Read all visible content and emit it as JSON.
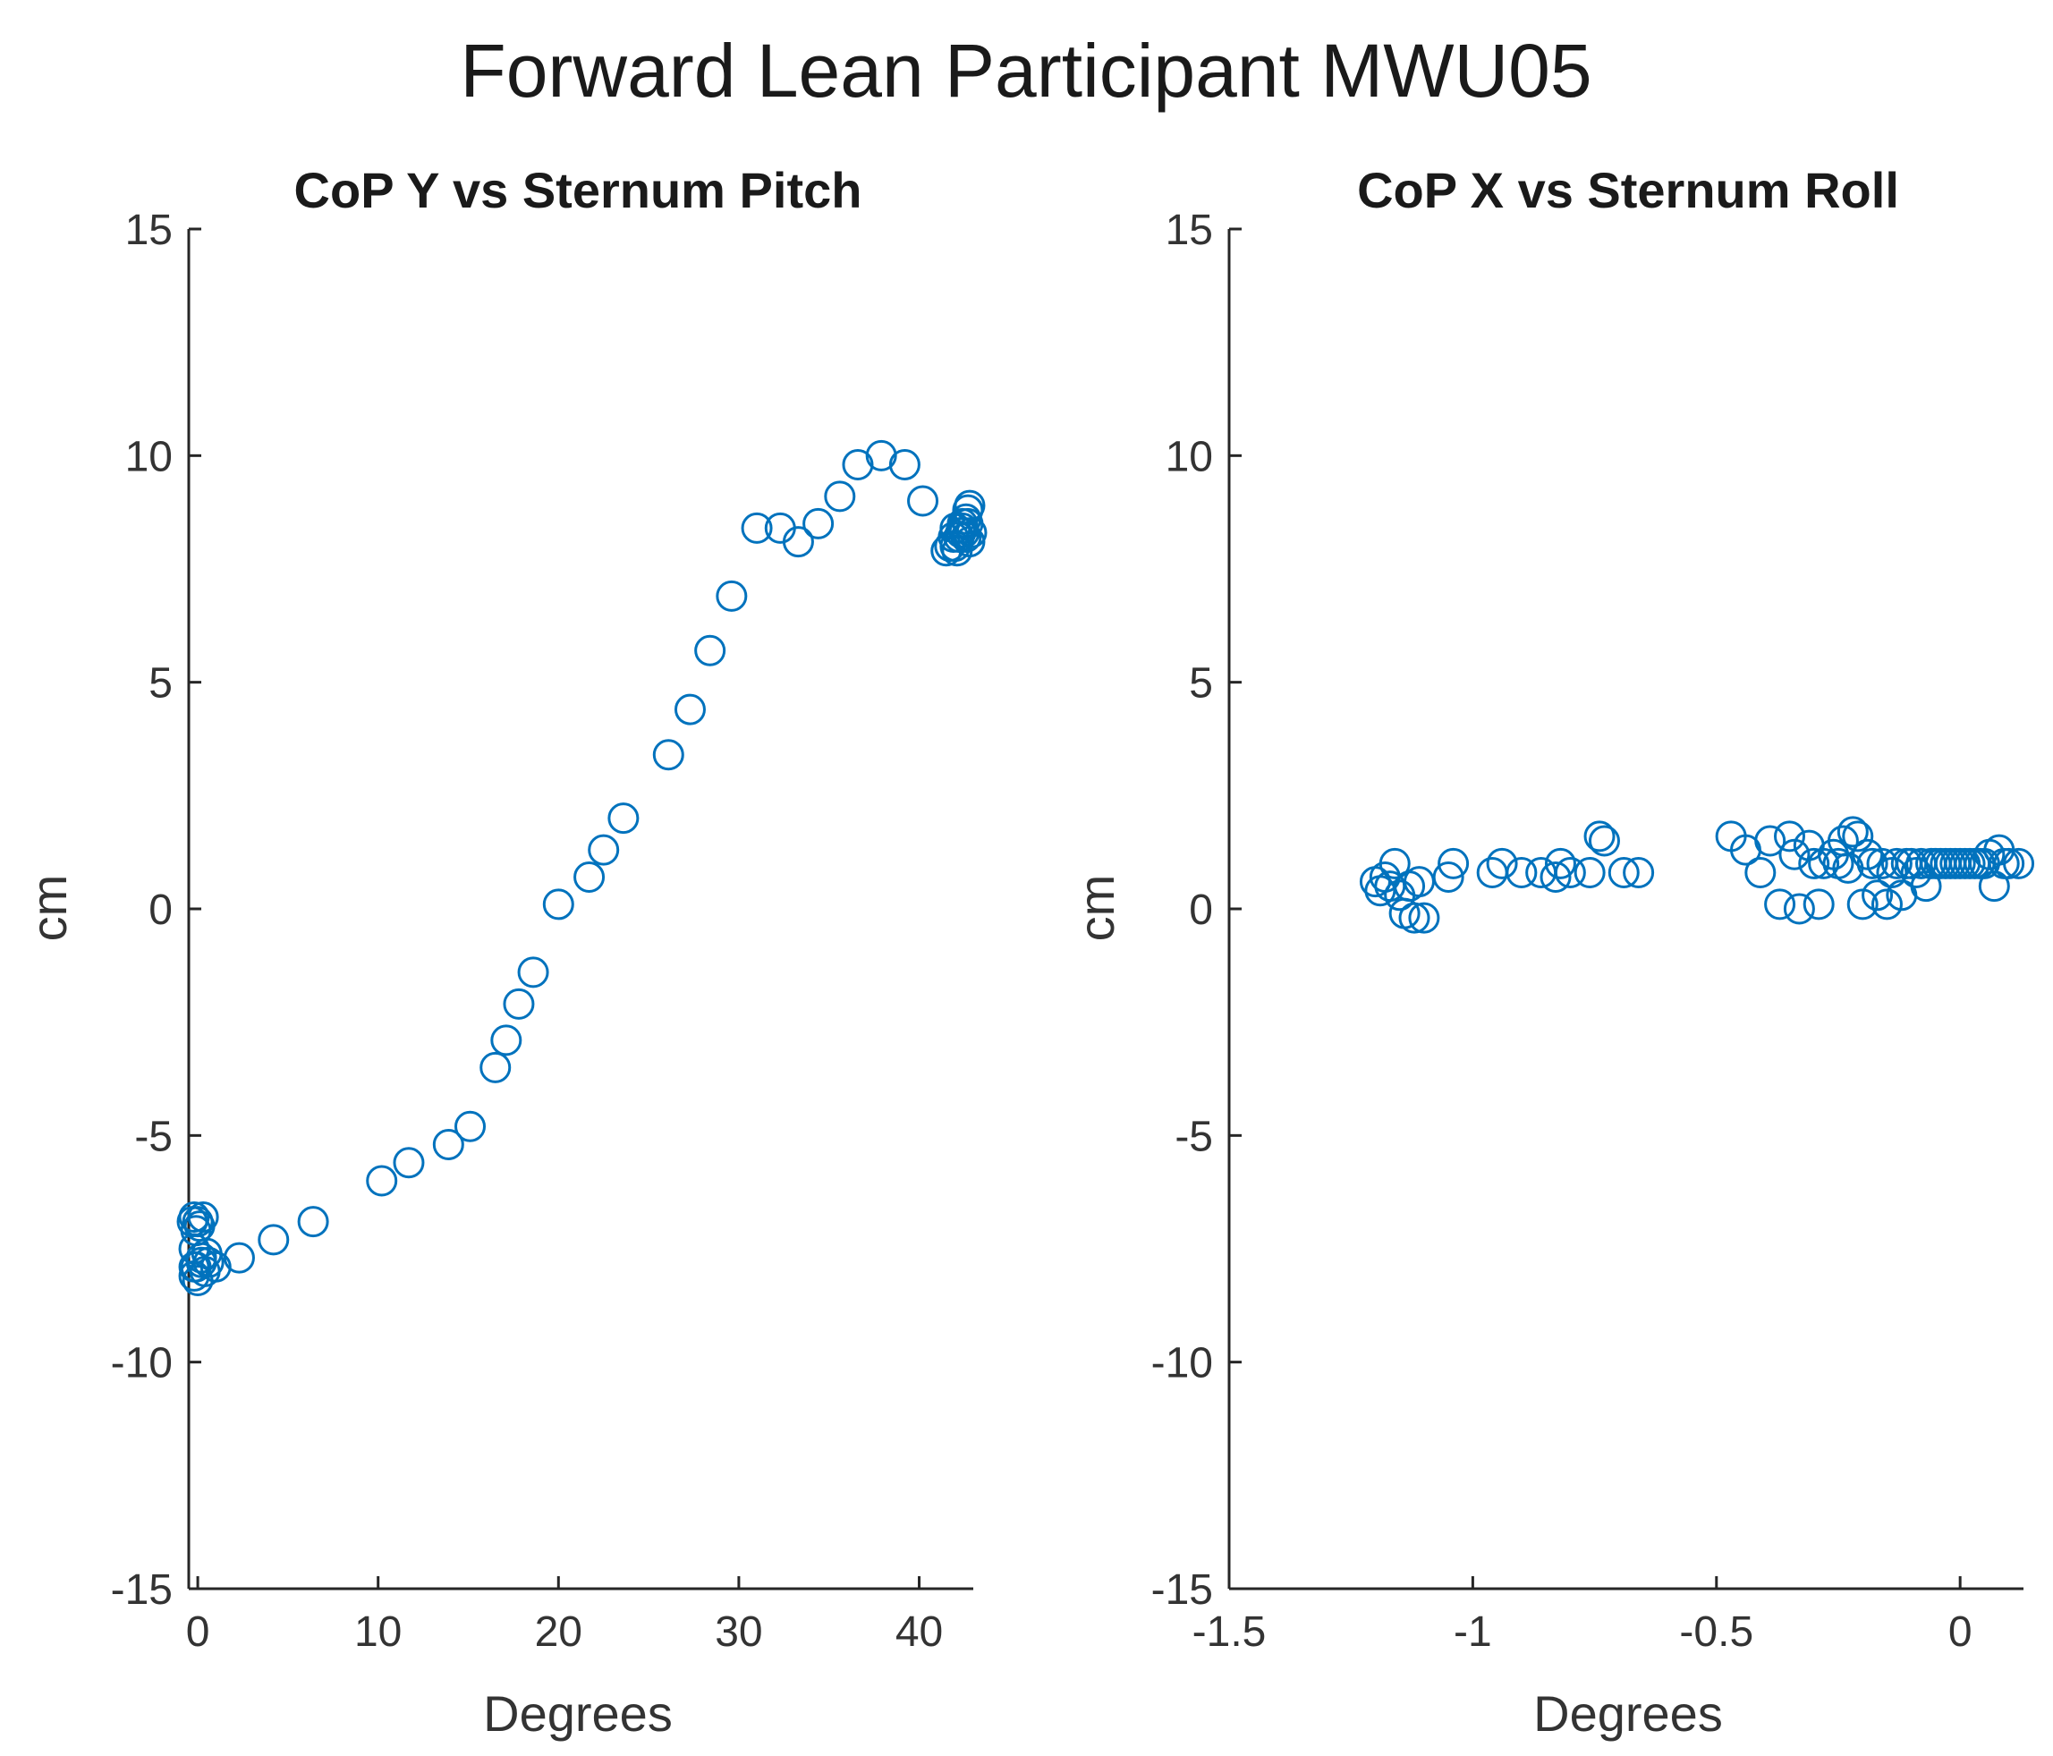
{
  "figure_title": "Forward Lean Participant MWU05",
  "colors": {
    "marker": "#0072BD",
    "axis": "#262626",
    "text": "#333333"
  },
  "chart_data": [
    {
      "type": "scatter",
      "title": "CoP Y vs Sternum Pitch",
      "xlabel": "Degrees",
      "ylabel": "cm",
      "xlim": [
        -0.5,
        43
      ],
      "ylim": [
        -15,
        15
      ],
      "xticks": [
        0,
        10,
        20,
        30,
        40
      ],
      "yticks": [
        -15,
        -10,
        -5,
        0,
        5,
        10,
        15
      ],
      "marker": "circle-open",
      "x": [
        -0.3,
        -0.2,
        0.0,
        0.1,
        -0.1,
        0.3,
        -0.2,
        0.2,
        -0.1,
        0.4,
        0.2,
        -0.2,
        0.5,
        1.0,
        0.6,
        0.0,
        -0.2,
        2.3,
        4.2,
        6.4,
        10.2,
        11.7,
        13.9,
        15.1,
        16.5,
        17.1,
        17.8,
        18.6,
        20.0,
        21.7,
        22.5,
        23.6,
        26.1,
        27.3,
        28.4,
        29.6,
        31.0,
        32.3,
        33.3,
        34.4,
        35.6,
        36.6,
        37.9,
        39.2,
        40.2,
        41.5,
        41.7,
        41.9,
        42.0,
        42.1,
        42.3,
        42.4,
        42.6,
        42.7,
        42.8,
        42.9,
        42.8,
        42.6,
        42.4,
        42.2,
        42.0,
        42.5,
        42.7
      ],
      "y": [
        -6.9,
        -6.8,
        -6.9,
        -7.0,
        -7.1,
        -6.8,
        -7.5,
        -7.7,
        -7.9,
        -8.0,
        -7.8,
        -8.1,
        -7.6,
        -7.9,
        -7.8,
        -8.2,
        -7.9,
        -7.7,
        -7.3,
        -6.9,
        -6.0,
        -5.6,
        -5.2,
        -4.8,
        -3.5,
        -2.9,
        -2.1,
        -1.4,
        0.1,
        0.7,
        1.3,
        2.0,
        3.4,
        4.4,
        5.7,
        6.9,
        8.4,
        8.4,
        8.1,
        8.5,
        9.1,
        9.8,
        10.0,
        9.8,
        9.0,
        7.9,
        8.0,
        8.2,
        8.4,
        7.9,
        8.3,
        8.5,
        8.2,
        8.8,
        8.9,
        8.3,
        8.1,
        8.6,
        8.4,
        8.2,
        8.0,
        8.3,
        8.5
      ]
    },
    {
      "type": "scatter",
      "title": "CoP X vs Sternum Roll",
      "xlabel": "Degrees",
      "ylabel": "cm",
      "xlim": [
        -1.5,
        0.13
      ],
      "ylim": [
        -15,
        15
      ],
      "xticks": [
        -1.5,
        -1,
        -0.5,
        0
      ],
      "yticks": [
        -15,
        -10,
        -5,
        0,
        5,
        10,
        15
      ],
      "marker": "circle-open",
      "x": [
        -1.2,
        -1.19,
        -1.18,
        -1.17,
        -1.16,
        -1.15,
        -1.14,
        -1.13,
        -1.12,
        -1.11,
        -1.1,
        -1.05,
        -1.04,
        -0.96,
        -0.94,
        -0.9,
        -0.86,
        -0.83,
        -0.82,
        -0.8,
        -0.76,
        -0.74,
        -0.73,
        -0.69,
        -0.66,
        -0.47,
        -0.44,
        -0.41,
        -0.39,
        -0.37,
        -0.35,
        -0.34,
        -0.33,
        -0.31,
        -0.3,
        -0.29,
        -0.28,
        -0.26,
        -0.25,
        -0.24,
        -0.23,
        -0.22,
        -0.21,
        -0.2,
        -0.19,
        -0.18,
        -0.17,
        -0.16,
        -0.15,
        -0.14,
        -0.13,
        -0.12,
        -0.11,
        -0.1,
        -0.09,
        -0.08,
        -0.07,
        -0.06,
        -0.05,
        -0.04,
        -0.03,
        -0.02,
        -0.01,
        0.0,
        0.01,
        0.02,
        0.03,
        0.04,
        0.05,
        0.06,
        0.07,
        0.08,
        0.09,
        0.1,
        0.12
      ],
      "y": [
        0.6,
        0.4,
        0.7,
        0.5,
        1.0,
        0.3,
        -0.1,
        0.5,
        -0.2,
        0.6,
        -0.2,
        0.7,
        1.0,
        0.8,
        1.0,
        0.8,
        0.8,
        0.7,
        1.0,
        0.8,
        0.8,
        1.6,
        1.5,
        0.8,
        0.8,
        1.6,
        1.3,
        0.8,
        1.5,
        0.1,
        1.6,
        1.2,
        0.0,
        1.4,
        1.0,
        0.1,
        1.0,
        1.2,
        1.0,
        1.5,
        0.9,
        1.7,
        1.6,
        0.1,
        1.2,
        1.0,
        0.3,
        1.0,
        0.1,
        0.8,
        1.0,
        0.3,
        1.0,
        1.0,
        0.8,
        1.0,
        0.5,
        1.0,
        1.0,
        1.0,
        1.0,
        1.0,
        1.0,
        1.0,
        1.0,
        1.0,
        1.0,
        1.0,
        1.0,
        1.2,
        0.5,
        1.3,
        1.0,
        1.0,
        1.0
      ]
    }
  ]
}
